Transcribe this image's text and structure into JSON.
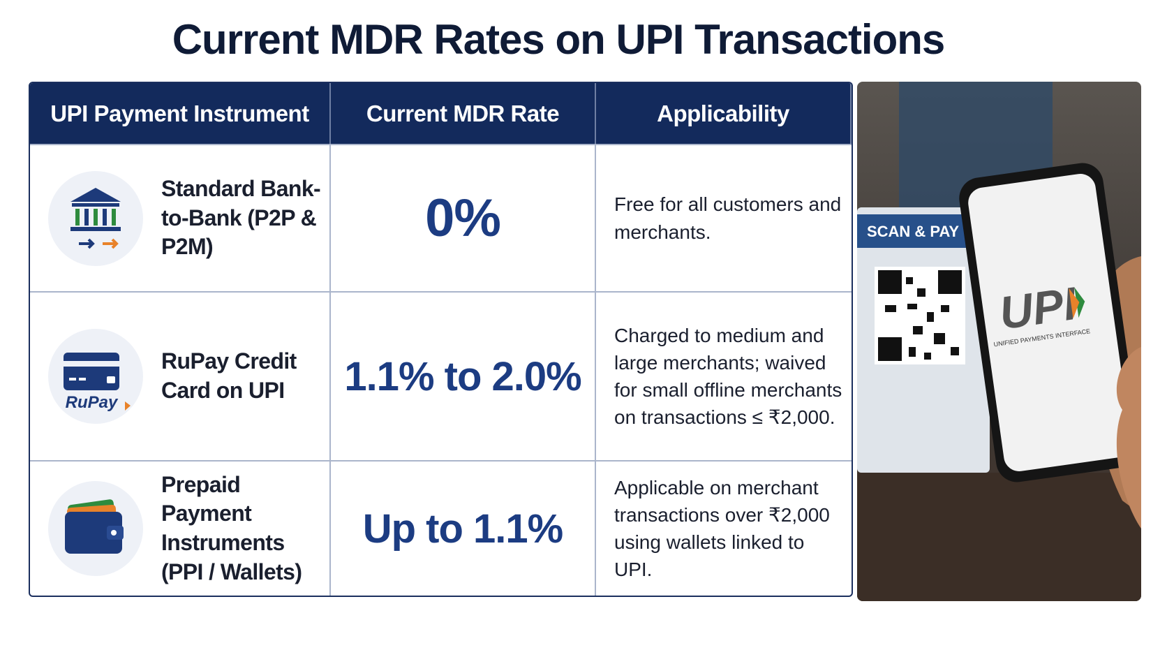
{
  "title": "Current MDR Rates on UPI Transactions",
  "table": {
    "headers": [
      "UPI Payment Instrument",
      "Current MDR Rate",
      "Applicability"
    ],
    "rows": [
      [
        "Standard Bank-to-Bank (P2P & P2M)",
        "0%",
        "Free for all customers and merchants."
      ],
      [
        "RuPay Credit Card on UPI",
        "1.1% to 2.0%",
        "Charged to medium and large merchants; waived for small offline merchants on transactions ≤ ₹2,000."
      ],
      [
        "Prepaid Payment Instruments (PPI / Wallets)",
        "Up to 1.1%",
        "Applicable on merchant transactions over ₹2,000 using wallets linked to UPI."
      ]
    ]
  },
  "icons": {
    "rupay_logo": "RuPay"
  },
  "photo": {
    "sign": "SCAN & PAY",
    "logo": "UPI",
    "logo_subtitle": "UNIFIED PAYMENTS INTERFACE"
  }
}
